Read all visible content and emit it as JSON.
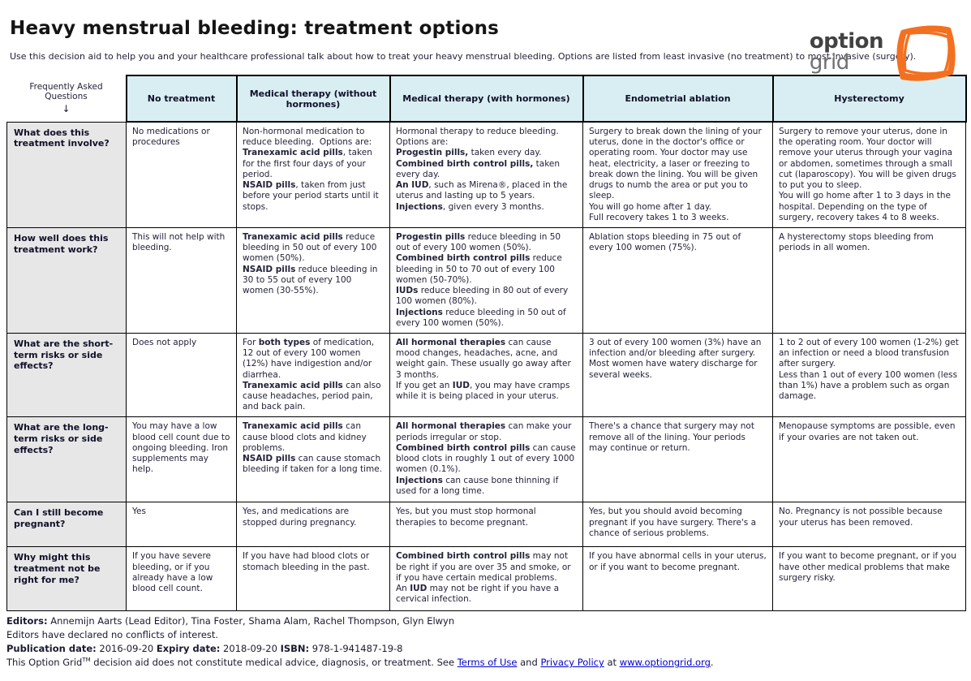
{
  "page": {
    "title": "Heavy menstrual bleeding: treatment options",
    "subtitle": "Use this decision aid to help you and your healthcare professional talk about how to treat your heavy menstrual bleeding. Options are listed from least invasive (no treatment) to most invasive (surgery)."
  },
  "logo": {
    "word1": "option",
    "word2": "grid",
    "accent_color": "#f37021"
  },
  "table": {
    "corner_header": "Frequently Asked Questions",
    "corner_arrow": "↓",
    "header_bg": "#d9eef2",
    "columns": [
      "No treatment",
      "Medical therapy (without hormones)",
      "Medical therapy (with hormones)",
      "Endometrial ablation",
      "Hysterectomy"
    ],
    "rows": [
      {
        "question": "What does this treatment involve?",
        "cells": [
          [
            {
              "t": "No medications or procedures"
            }
          ],
          [
            {
              "t": "Non-hormonal medication to reduce bleeding.  Options are:\n"
            },
            {
              "b": true,
              "t": "Tranexamic acid pills"
            },
            {
              "t": ", taken for the first four days of your period.\n"
            },
            {
              "b": true,
              "t": "NSAID pills"
            },
            {
              "t": ", taken from just before your period starts until it stops."
            }
          ],
          [
            {
              "t": "Hormonal therapy to reduce bleeding. Options are:\n"
            },
            {
              "b": true,
              "t": "Progestin pills,"
            },
            {
              "t": " taken every day.\n"
            },
            {
              "b": true,
              "t": "Combined birth control pills,"
            },
            {
              "t": " taken every day.\n"
            },
            {
              "b": true,
              "t": "An IUD"
            },
            {
              "t": ", such as Mirena®, placed in the uterus and lasting up to 5 years.\n"
            },
            {
              "b": true,
              "t": "Injections"
            },
            {
              "t": ", given every 3 months."
            }
          ],
          [
            {
              "t": "Surgery to break down the lining of your uterus, done in the doctor's office or operating room. Your doctor may use heat, electricity, a laser or freezing to break down the lining. You will be given drugs to numb the area or put you to sleep.\nYou will go home after 1 day.\nFull recovery takes 1 to 3 weeks."
            }
          ],
          [
            {
              "t": "Surgery to remove your uterus, done in the operating room. Your doctor will remove your uterus through your vagina or abdomen, sometimes through a small cut (laparoscopy). You will be given drugs to put you to sleep.\nYou will go home after 1 to 3 days in the hospital. Depending on the type of surgery, recovery takes 4 to 8 weeks."
            }
          ]
        ]
      },
      {
        "question": "How well does this treatment work?",
        "cells": [
          [
            {
              "t": "This will not help with bleeding."
            }
          ],
          [
            {
              "b": true,
              "t": "Tranexamic acid pills"
            },
            {
              "t": " reduce bleeding in 50 out of every 100 women (50%).\n"
            },
            {
              "b": true,
              "t": "NSAID pills"
            },
            {
              "t": " reduce bleeding in 30 to 55 out of every 100 women (30-55%)."
            }
          ],
          [
            {
              "b": true,
              "t": "Progestin pills"
            },
            {
              "t": " reduce bleeding in 50 out of every 100 women (50%).\n"
            },
            {
              "b": true,
              "t": "Combined birth control pills"
            },
            {
              "t": " reduce bleeding in 50 to 70 out of every 100 women (50-70%).\n"
            },
            {
              "b": true,
              "t": "IUDs"
            },
            {
              "t": " reduce bleeding in 80 out of every 100 women (80%).\n"
            },
            {
              "b": true,
              "t": "Injections"
            },
            {
              "t": " reduce bleeding in 50 out of every 100 women (50%)."
            }
          ],
          [
            {
              "t": "Ablation stops bleeding in 75 out of every 100 women (75%)."
            }
          ],
          [
            {
              "t": "A hysterectomy stops bleeding from periods in all women."
            }
          ]
        ]
      },
      {
        "question": "What are the short-term risks or side effects?",
        "cells": [
          [
            {
              "t": "Does not apply"
            }
          ],
          [
            {
              "t": "For "
            },
            {
              "b": true,
              "t": "both types"
            },
            {
              "t": " of medication, 12 out of every 100 women (12%) have indigestion and/or diarrhea.\n"
            },
            {
              "b": true,
              "t": "Tranexamic acid pills"
            },
            {
              "t": " can also cause headaches, period pain, and back pain."
            }
          ],
          [
            {
              "b": true,
              "t": "All hormonal therapies"
            },
            {
              "t": " can cause mood changes, headaches, acne, and weight gain. These usually go away after 3 months.\nIf you get an "
            },
            {
              "b": true,
              "t": "IUD"
            },
            {
              "t": ", you may have cramps while it is being placed in your uterus."
            }
          ],
          [
            {
              "t": "3 out of every 100 women (3%) have an infection and/or bleeding after surgery.\nMost women have watery discharge for several weeks."
            }
          ],
          [
            {
              "t": "1 to 2 out of every 100 women (1-2%) get an infection or need a blood transfusion after surgery.\nLess than 1 out of every 100 women (less than 1%) have a problem such as organ damage."
            }
          ]
        ]
      },
      {
        "question": "What are the long-term risks or side effects?",
        "cells": [
          [
            {
              "t": "You may have a low blood cell count due to ongoing bleeding. Iron supplements may help."
            }
          ],
          [
            {
              "b": true,
              "t": "Tranexamic acid pills"
            },
            {
              "t": " can cause blood clots and kidney problems.\n"
            },
            {
              "b": true,
              "t": "NSAID pills"
            },
            {
              "t": " can cause stomach bleeding if taken for a long time."
            }
          ],
          [
            {
              "b": true,
              "t": "All hormonal therapies"
            },
            {
              "t": " can make your periods irregular or stop.\n"
            },
            {
              "b": true,
              "t": "Combined birth control pills"
            },
            {
              "t": " can cause blood clots in roughly 1 out of every 1000 women (0.1%).\n"
            },
            {
              "b": true,
              "t": "Injections"
            },
            {
              "t": " can cause bone thinning if used for a long time."
            }
          ],
          [
            {
              "t": "There's a chance that surgery may not remove all of the lining. Your periods may continue or return."
            }
          ],
          [
            {
              "t": "Menopause symptoms are possible, even if your ovaries are not taken out."
            }
          ]
        ]
      },
      {
        "question": "Can I still become pregnant?",
        "cells": [
          [
            {
              "t": "Yes"
            }
          ],
          [
            {
              "t": "Yes, and medications are stopped during pregnancy."
            }
          ],
          [
            {
              "t": "Yes, but you must stop hormonal therapies to become pregnant."
            }
          ],
          [
            {
              "t": "Yes, but you should avoid becoming pregnant if you have surgery. There's a chance of serious problems."
            }
          ],
          [
            {
              "t": "No. Pregnancy is not possible because your uterus has been removed."
            }
          ]
        ]
      },
      {
        "question": "Why might this treatment not be right for me?",
        "cells": [
          [
            {
              "t": "If you have severe bleeding, or if you already have a low blood cell count."
            }
          ],
          [
            {
              "t": "If you have had blood clots or stomach bleeding in the past."
            }
          ],
          [
            {
              "b": true,
              "t": "Combined birth control pills"
            },
            {
              "t": " may not be right if you are over 35 and smoke, or if you have certain medical problems.\nAn "
            },
            {
              "b": true,
              "t": "IUD"
            },
            {
              "t": " may not be right if you have a cervical infection."
            }
          ],
          [
            {
              "t": "If you have abnormal cells in your uterus, or if you want to become pregnant."
            }
          ],
          [
            {
              "t": "If you want to become pregnant, or if you have other medical problems that make surgery risky."
            }
          ]
        ]
      }
    ]
  },
  "footer": {
    "lines": [
      [
        {
          "b": true,
          "t": "Editors:"
        },
        {
          "t": "  Annemijn Aarts (Lead Editor), Tina Foster, Shama Alam, Rachel Thompson, Glyn Elwyn"
        }
      ],
      [
        {
          "t": "Editors have declared no conflicts of interest."
        }
      ],
      [
        {
          "b": true,
          "t": "Publication date:"
        },
        {
          "t": "  2016-09-20 "
        },
        {
          "b": true,
          "t": "Expiry date:"
        },
        {
          "t": "  2018-09-20 "
        },
        {
          "b": true,
          "t": "ISBN:"
        },
        {
          "t": "  978-1-941487-19-8"
        }
      ],
      [
        {
          "t": "This Option Grid"
        },
        {
          "sup": true,
          "t": "TM"
        },
        {
          "t": " decision aid does not constitute medical advice, diagnosis, or treatment. See  "
        },
        {
          "link": true,
          "t": "Terms of Use"
        },
        {
          "t": " and "
        },
        {
          "link": true,
          "t": "Privacy Policy"
        },
        {
          "t": " at "
        },
        {
          "link": true,
          "t": "www.optiongrid.org"
        },
        {
          "t": "."
        }
      ]
    ]
  }
}
